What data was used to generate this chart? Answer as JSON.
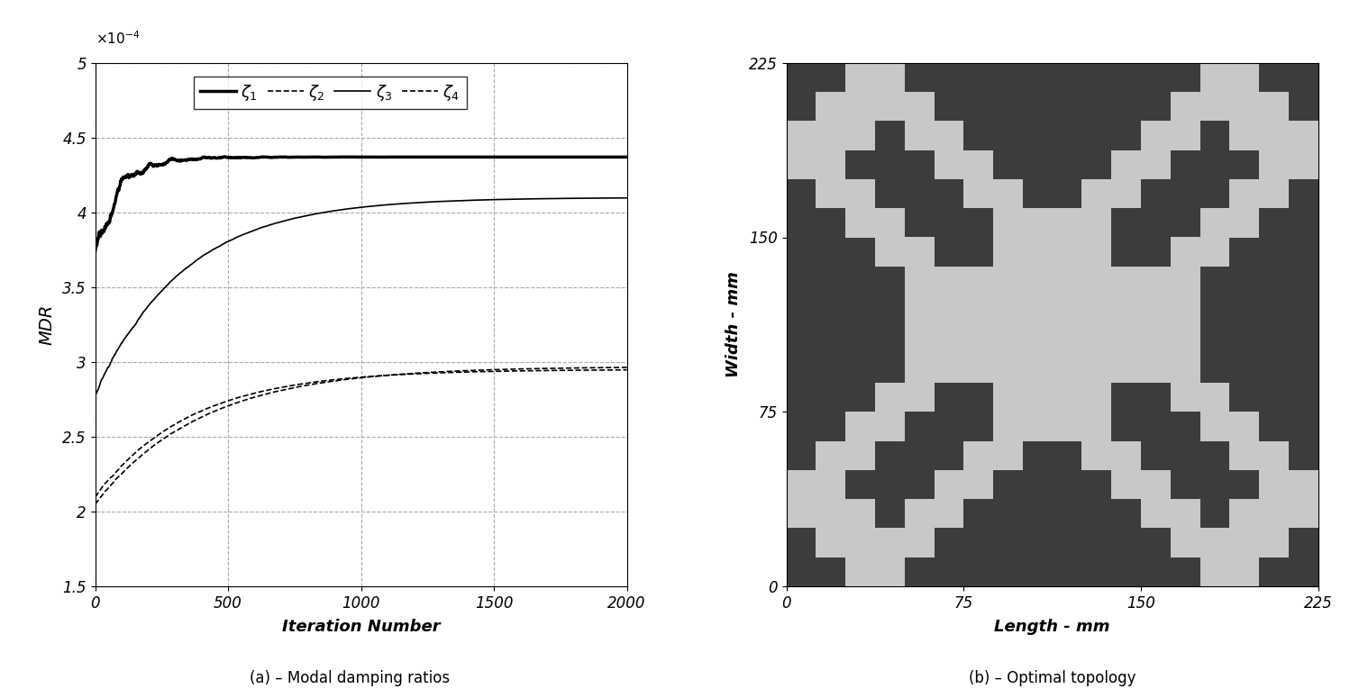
{
  "left_title": "MDR",
  "left_xlabel": "Iteration Number",
  "ylim": [
    0.00015,
    0.0005
  ],
  "xlim": [
    0,
    2000
  ],
  "yticks": [
    0.00015,
    0.0002,
    0.00025,
    0.0003,
    0.00035,
    0.0004,
    0.00045,
    0.0005
  ],
  "ytick_labels": [
    "1.5",
    "2",
    "2.5",
    "3",
    "3.5",
    "4",
    "4.5",
    "5"
  ],
  "xticks": [
    0,
    500,
    1000,
    1500,
    2000
  ],
  "caption_left": "(a) – Modal damping ratios",
  "caption_right": "(b) – Optimal topology",
  "right_xlabel": "Length - mm",
  "right_ylabel": "Width - mm",
  "right_xticks": [
    0,
    75,
    150,
    225
  ],
  "right_yticks": [
    0,
    75,
    150,
    225
  ],
  "dark_color": "#3c3c3c",
  "light_color": "#c8c8c8",
  "topology_grid": [
    [
      0,
      0,
      1,
      1,
      0,
      0,
      0,
      0,
      0,
      0,
      0,
      0,
      0,
      0,
      1,
      1,
      0,
      0
    ],
    [
      0,
      1,
      1,
      1,
      1,
      0,
      0,
      0,
      0,
      0,
      0,
      0,
      0,
      1,
      1,
      1,
      1,
      0
    ],
    [
      1,
      1,
      1,
      0,
      1,
      1,
      0,
      0,
      0,
      0,
      0,
      0,
      1,
      1,
      0,
      1,
      1,
      1
    ],
    [
      1,
      1,
      0,
      0,
      0,
      1,
      1,
      0,
      0,
      0,
      0,
      1,
      1,
      0,
      0,
      0,
      1,
      1
    ],
    [
      0,
      1,
      1,
      0,
      0,
      0,
      1,
      1,
      0,
      0,
      1,
      1,
      0,
      0,
      0,
      1,
      1,
      0
    ],
    [
      0,
      0,
      1,
      1,
      0,
      0,
      0,
      1,
      1,
      1,
      1,
      0,
      0,
      0,
      1,
      1,
      0,
      0
    ],
    [
      0,
      0,
      0,
      1,
      1,
      0,
      0,
      1,
      1,
      1,
      1,
      0,
      0,
      1,
      1,
      0,
      0,
      0
    ],
    [
      0,
      0,
      0,
      0,
      1,
      1,
      1,
      1,
      1,
      1,
      1,
      1,
      1,
      1,
      0,
      0,
      0,
      0
    ],
    [
      0,
      0,
      0,
      0,
      1,
      1,
      1,
      1,
      1,
      1,
      1,
      1,
      1,
      1,
      0,
      0,
      0,
      0
    ],
    [
      0,
      0,
      0,
      0,
      1,
      1,
      1,
      1,
      1,
      1,
      1,
      1,
      1,
      1,
      0,
      0,
      0,
      0
    ],
    [
      0,
      0,
      0,
      0,
      1,
      1,
      1,
      1,
      1,
      1,
      1,
      1,
      1,
      1,
      0,
      0,
      0,
      0
    ],
    [
      0,
      0,
      0,
      1,
      1,
      0,
      0,
      1,
      1,
      1,
      1,
      0,
      0,
      1,
      1,
      0,
      0,
      0
    ],
    [
      0,
      0,
      1,
      1,
      0,
      0,
      0,
      1,
      1,
      1,
      1,
      0,
      0,
      0,
      1,
      1,
      0,
      0
    ],
    [
      0,
      1,
      1,
      0,
      0,
      0,
      1,
      1,
      0,
      0,
      1,
      1,
      0,
      0,
      0,
      1,
      1,
      0
    ],
    [
      1,
      1,
      0,
      0,
      0,
      1,
      1,
      0,
      0,
      0,
      0,
      1,
      1,
      0,
      0,
      0,
      1,
      1
    ],
    [
      1,
      1,
      1,
      0,
      1,
      1,
      0,
      0,
      0,
      0,
      0,
      0,
      1,
      1,
      0,
      1,
      1,
      1
    ],
    [
      0,
      1,
      1,
      1,
      1,
      0,
      0,
      0,
      0,
      0,
      0,
      0,
      0,
      1,
      1,
      1,
      1,
      0
    ],
    [
      0,
      0,
      1,
      1,
      0,
      0,
      0,
      0,
      0,
      0,
      0,
      0,
      0,
      0,
      1,
      1,
      0,
      0
    ]
  ],
  "curve1_lw": 2.5,
  "curve2_lw": 1.2,
  "curve3_lw": 1.2,
  "curve4_lw": 1.2
}
